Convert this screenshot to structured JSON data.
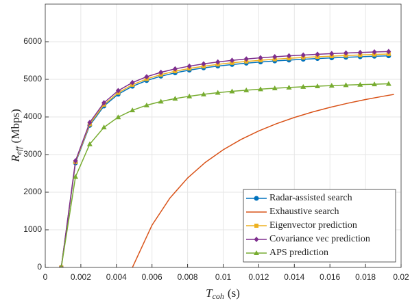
{
  "chart_data": {
    "type": "line",
    "xlabel": {
      "main": "T",
      "sub": "coh",
      "unit": "(s)"
    },
    "ylabel": {
      "main": "R",
      "sub": "eff",
      "unit": "(Mbps)"
    },
    "x": [
      0.0009,
      0.0017,
      0.0025,
      0.0033,
      0.0041,
      0.0049,
      0.0057,
      0.0065,
      0.0073,
      0.0081,
      0.0089,
      0.0097,
      0.0105,
      0.0113,
      0.0121,
      0.0129,
      0.0137,
      0.0145,
      0.0153,
      0.0161,
      0.0169,
      0.0177,
      0.0185,
      0.0193
    ],
    "series": [
      {
        "name": "Radar-assisted search",
        "color": "#0072bd",
        "marker": "circle",
        "values": [
          0,
          2777,
          3776,
          4291,
          4605,
          4816,
          4968,
          5083,
          5173,
          5245,
          5304,
          5352,
          5394,
          5430,
          5461,
          5488,
          5512,
          5534,
          5553,
          5570,
          5586,
          5600,
          5613,
          5625
        ]
      },
      {
        "name": "Exhaustive search",
        "color": "#d95319",
        "marker": "none",
        "x": [
          0.0049,
          0.006,
          0.007,
          0.008,
          0.009,
          0.01,
          0.011,
          0.012,
          0.013,
          0.014,
          0.015,
          0.016,
          0.017,
          0.018,
          0.019,
          0.0196
        ],
        "values": [
          0,
          1124,
          1840,
          2377,
          2794,
          3128,
          3401,
          3629,
          3821,
          3986,
          4129,
          4255,
          4365,
          4464,
          4551,
          4600
        ]
      },
      {
        "name": "Eigenvector prediction",
        "color": "#edb120",
        "marker": "square",
        "values": [
          0,
          2800,
          3808,
          4327,
          4644,
          4857,
          5010,
          5126,
          5216,
          5289,
          5348,
          5398,
          5440,
          5476,
          5507,
          5535,
          5559,
          5581,
          5600,
          5617,
          5633,
          5648,
          5661,
          5673
        ]
      },
      {
        "name": "Covariance vec prediction",
        "color": "#7e2f8e",
        "marker": "diamond",
        "values": [
          0,
          2833,
          3853,
          4378,
          4699,
          4914,
          5069,
          5186,
          5278,
          5351,
          5411,
          5461,
          5504,
          5541,
          5572,
          5600,
          5624,
          5646,
          5666,
          5683,
          5699,
          5714,
          5727,
          5739
        ]
      },
      {
        "name": "APS prediction",
        "color": "#77ac30",
        "marker": "triangle",
        "values": [
          0,
          2409,
          3277,
          3724,
          3996,
          4179,
          4312,
          4411,
          4489,
          4551,
          4602,
          4645,
          4681,
          4712,
          4739,
          4763,
          4784,
          4802,
          4819,
          4834,
          4847,
          4860,
          4871,
          4881
        ]
      }
    ],
    "xlim": [
      0,
      0.02
    ],
    "xticks": [
      0,
      0.002,
      0.004,
      0.006,
      0.008,
      0.01,
      0.012,
      0.014,
      0.016,
      0.018,
      0.02
    ],
    "ylim": [
      0,
      7000
    ],
    "yticks": [
      0,
      1000,
      2000,
      3000,
      4000,
      5000,
      6000
    ],
    "grid": true,
    "legend": "lower right"
  }
}
